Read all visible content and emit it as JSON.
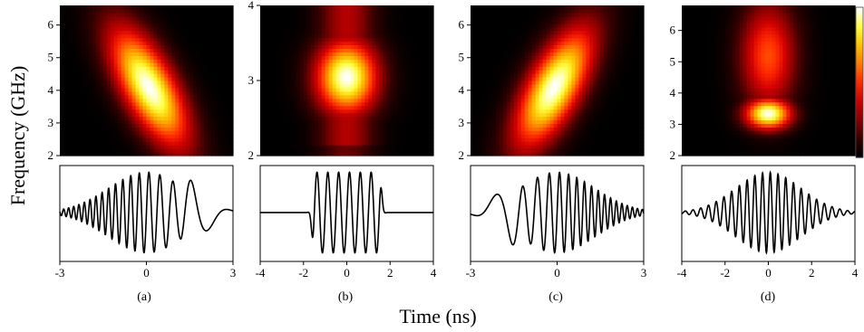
{
  "figure": {
    "ylabel": "Frequency (GHz)",
    "xlabel": "Time (ns)",
    "colormap": [
      "#000000",
      "#3a0000",
      "#8b0000",
      "#d00000",
      "#ff2a00",
      "#ff7a00",
      "#ffc000",
      "#ffff40",
      "#ffffff"
    ]
  },
  "chart_data": [
    {
      "panel": "(a)",
      "type": "heatmap",
      "xlim": [
        -3,
        3
      ],
      "ylim": [
        2,
        6.6
      ],
      "yticks": [
        2,
        3,
        4,
        5,
        6
      ],
      "xticks": [
        -3,
        0,
        3
      ],
      "blob": {
        "t0": 0.1,
        "f0": 4.1,
        "sigma_t": 0.95,
        "sigma_f": 0.95,
        "chirp": -0.9
      },
      "waveform": {
        "type": "line",
        "t0": 0,
        "sigma": 1.3,
        "cycles": 11,
        "chirp": "down",
        "note": ""
      }
    },
    {
      "panel": "(b)",
      "type": "heatmap",
      "xlim": [
        -4,
        4
      ],
      "ylim": [
        2,
        4
      ],
      "yticks": [
        2,
        3,
        4
      ],
      "xticks": [
        -4,
        -2,
        0,
        2,
        4
      ],
      "blob": {
        "t0": 0,
        "f0": 3.05,
        "sigma_t": 1.0,
        "sigma_f": 0.35,
        "chirp": 0
      },
      "waveform": {
        "type": "line",
        "t0": 0,
        "width": 3.0,
        "cycles": 6,
        "chirp": "none",
        "note": ""
      }
    },
    {
      "panel": "(c)",
      "type": "heatmap",
      "xlim": [
        -3,
        3
      ],
      "ylim": [
        2,
        6.6
      ],
      "yticks": [
        2,
        3,
        4,
        5,
        6
      ],
      "xticks": [
        -3,
        0,
        3
      ],
      "blob": {
        "t0": -0.1,
        "f0": 4.1,
        "sigma_t": 0.95,
        "sigma_f": 0.95,
        "chirp": 0.9
      },
      "waveform": {
        "type": "line",
        "t0": 0,
        "sigma": 1.3,
        "cycles": 11,
        "chirp": "up",
        "note": ""
      }
    },
    {
      "panel": "(d)",
      "type": "heatmap",
      "xlim": [
        -4,
        4
      ],
      "ylim": [
        2,
        6.8
      ],
      "yticks": [
        2,
        3,
        4,
        5,
        6
      ],
      "xticks": [
        -4,
        -2,
        0,
        2,
        4
      ],
      "blob": {
        "t0": 0,
        "f0": 3.35,
        "sigma_t": 0.75,
        "sigma_f": 0.35,
        "chirp": 0
      },
      "waveform": {
        "type": "line",
        "t0": 0,
        "sigma": 1.5,
        "cycles": 14,
        "chirp": "none",
        "note": ""
      }
    }
  ]
}
